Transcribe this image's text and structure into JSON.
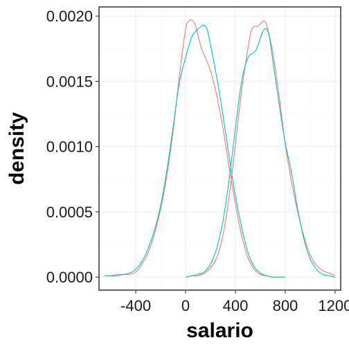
{
  "chart_data": {
    "type": "line",
    "xlabel": "salario",
    "ylabel": "density",
    "xlim": [
      -695,
      1245
    ],
    "ylim": [
      -0.0001,
      0.00207
    ],
    "xticks": [
      -400,
      0,
      400,
      800,
      1200
    ],
    "xtick_labels": [
      "-400",
      "0",
      "400",
      "800",
      "1200"
    ],
    "yticks": [
      0.0,
      0.0005,
      0.001,
      0.0015,
      0.002
    ],
    "ytick_labels": [
      "0.0000",
      "0.0005",
      "0.0010",
      "0.0015",
      "0.0020"
    ],
    "grid": true,
    "legend": "none",
    "colors": [
      "#F8766D",
      "#00BFC4"
    ],
    "series": [
      {
        "color": "#F8766D",
        "x": [
          -650,
          -600,
          -550,
          -500,
          -450,
          -400,
          -350,
          -300,
          -250,
          -200,
          -150,
          -100,
          -50,
          0,
          25,
          50,
          75,
          100,
          125,
          150,
          200,
          250,
          300,
          350,
          400,
          450,
          500,
          550,
          600,
          650,
          700,
          750,
          800
        ],
        "y": [
          1e-05,
          1e-05,
          2e-05,
          2e-05,
          2e-05,
          4e-05,
          0.0001,
          0.00019,
          0.00033,
          0.00052,
          0.00078,
          0.00112,
          0.00154,
          0.0019,
          0.00196,
          0.00197,
          0.00194,
          0.00185,
          0.00176,
          0.0017,
          0.00158,
          0.00139,
          0.00114,
          0.00084,
          0.00056,
          0.00032,
          0.00015,
          6e-05,
          2e-05,
          1e-05,
          0.0,
          0.0,
          0.0
        ]
      },
      {
        "color": "#00BFC4",
        "x": [
          -650,
          -600,
          -550,
          -500,
          -450,
          -400,
          -350,
          -300,
          -250,
          -200,
          -150,
          -100,
          -50,
          0,
          50,
          100,
          125,
          150,
          175,
          200,
          250,
          300,
          350,
          400,
          450,
          500,
          550,
          600,
          650,
          700,
          750,
          800
        ],
        "y": [
          1e-05,
          1e-05,
          1e-05,
          2e-05,
          3e-05,
          6e-05,
          0.00012,
          0.00022,
          0.00036,
          0.00055,
          0.00082,
          0.00115,
          0.00149,
          0.00168,
          0.00184,
          0.0019,
          0.00192,
          0.00193,
          0.00189,
          0.00178,
          0.00153,
          0.00124,
          0.00092,
          0.00062,
          0.00038,
          0.00019,
          8e-05,
          3e-05,
          1e-05,
          0.0,
          0.0,
          0.0
        ]
      },
      {
        "color": "#F8766D",
        "x": [
          0,
          50,
          100,
          150,
          200,
          250,
          300,
          350,
          400,
          450,
          500,
          525,
          550,
          575,
          600,
          625,
          650,
          700,
          750,
          800,
          850,
          900,
          950,
          1000,
          1050,
          1100,
          1150,
          1200
        ],
        "y": [
          0.0,
          1e-05,
          1e-05,
          3e-05,
          7e-05,
          0.00015,
          0.00032,
          0.00062,
          0.00102,
          0.00143,
          0.00175,
          0.00188,
          0.00192,
          0.00192,
          0.00194,
          0.00196,
          0.00193,
          0.00172,
          0.00139,
          0.00102,
          0.00073,
          0.0005,
          0.00031,
          0.00017,
          9e-05,
          5e-05,
          3e-05,
          1e-05
        ]
      },
      {
        "color": "#00BFC4",
        "x": [
          0,
          50,
          100,
          150,
          200,
          250,
          300,
          350,
          400,
          450,
          500,
          550,
          575,
          600,
          625,
          650,
          675,
          700,
          750,
          800,
          850,
          900,
          950,
          1000,
          1050,
          1100,
          1150,
          1200
        ],
        "y": [
          0.0,
          1e-05,
          2e-05,
          4e-05,
          0.0001,
          0.00022,
          0.00043,
          0.00075,
          0.00114,
          0.0015,
          0.00168,
          0.00172,
          0.00176,
          0.00183,
          0.00189,
          0.0019,
          0.00183,
          0.00166,
          0.00133,
          0.00103,
          0.0008,
          0.00052,
          0.00029,
          0.00014,
          6e-05,
          2e-05,
          1e-05,
          0.0
        ]
      }
    ]
  }
}
